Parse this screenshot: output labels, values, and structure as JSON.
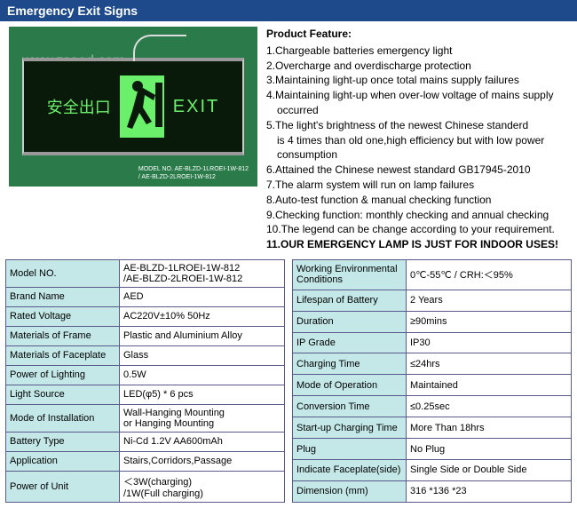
{
  "header": {
    "title": "Emergency Exit Signs"
  },
  "image": {
    "watermark": "www.zsaed.com",
    "sign_cn": "安全出口",
    "sign_en": "EXIT",
    "model_label_prefix": "MODEL NO.",
    "model_label_line1": "AE-BLZD-1LROEI-1W-812",
    "model_label_line2": "/ AE-BLZD-2LROEI-1W-812",
    "bg_color": "#2a7a4a",
    "sign_bg": "#0a1a0a",
    "sign_text_color": "#6af06a"
  },
  "features": {
    "title": "Product Feature:",
    "items": [
      "1.Chargeable batteries emergency light",
      "2.Overcharge and overdischarge protection",
      "3.Maintaining light-up once total mains supply failures",
      "4.Maintaining light-up when over-low voltage of mains supply",
      "   occurred",
      "5.The light's brightness of the newest Chinese standerd",
      "   is 4 times than old one,high efficiency but with low power",
      "   consumption",
      "6.Attained the Chinese newest standard GB17945-2010",
      "7.The alarm system will run on lamp failures",
      "8.Auto-test function & manual checking function",
      "9.Checking function: monthly checking and annual checking",
      "10.The legend can be change according to your requirement."
    ],
    "bold_line": "11.OUR EMERGENCY LAMP IS JUST FOR INDOOR USES!"
  },
  "specs_left": [
    {
      "label": "Model NO.",
      "value": "AE-BLZD-1LROEI-1W-812\n/AE-BLZD-2LROEI-1W-812"
    },
    {
      "label": "Brand Name",
      "value": "AED"
    },
    {
      "label": "Rated Voltage",
      "value": "AC220V±10%   50Hz"
    },
    {
      "label": "Materials of Frame",
      "value": "Plastic and Aluminium Alloy"
    },
    {
      "label": "Materials of Faceplate",
      "value": "Glass"
    },
    {
      "label": "Power of Lighting",
      "value": "0.5W"
    },
    {
      "label": "Light Source",
      "value": " LED(φ5)  * 6 pcs"
    },
    {
      "label": "Mode of Installation",
      "value": "Wall-Hanging Mounting\nor Hanging Mounting"
    },
    {
      "label": "Battery Type",
      "value": "Ni-Cd 1.2V AA600mAh"
    },
    {
      "label": "Application",
      "value": "Stairs,Corridors,Passage"
    },
    {
      "label": "Power of Unit",
      "value": "＜3W(charging)\n/1W(Full charging)"
    }
  ],
  "specs_right": [
    {
      "label": "Working Environmental Conditions",
      "value": "0℃-55℃ / CRH:＜95%"
    },
    {
      "label": "Lifespan of Battery",
      "value": "2 Years"
    },
    {
      "label": "Duration",
      "value": "≥90mins"
    },
    {
      "label": "IP Grade",
      "value": "IP30"
    },
    {
      "label": "Charging Time",
      "value": "≤24hrs"
    },
    {
      "label": "Mode of Operation",
      "value": "Maintained"
    },
    {
      "label": "Conversion Time",
      "value": "≤0.25sec"
    },
    {
      "label": "Start-up Charging Time",
      "value": "More Than 18hrs"
    },
    {
      "label": "Plug",
      "value": "No Plug"
    },
    {
      "label": "Indicate Faceplate(side)",
      "value": "Single Side or Double Side"
    },
    {
      "label": "Dimension (mm)",
      "value": "316 *136 *23"
    }
  ],
  "style": {
    "label_bg": "#c4e8e8",
    "border_color": "#5a5a8a",
    "header_bg": "#1e4a8c",
    "font_size_body": 12,
    "font_size_table": 11
  }
}
